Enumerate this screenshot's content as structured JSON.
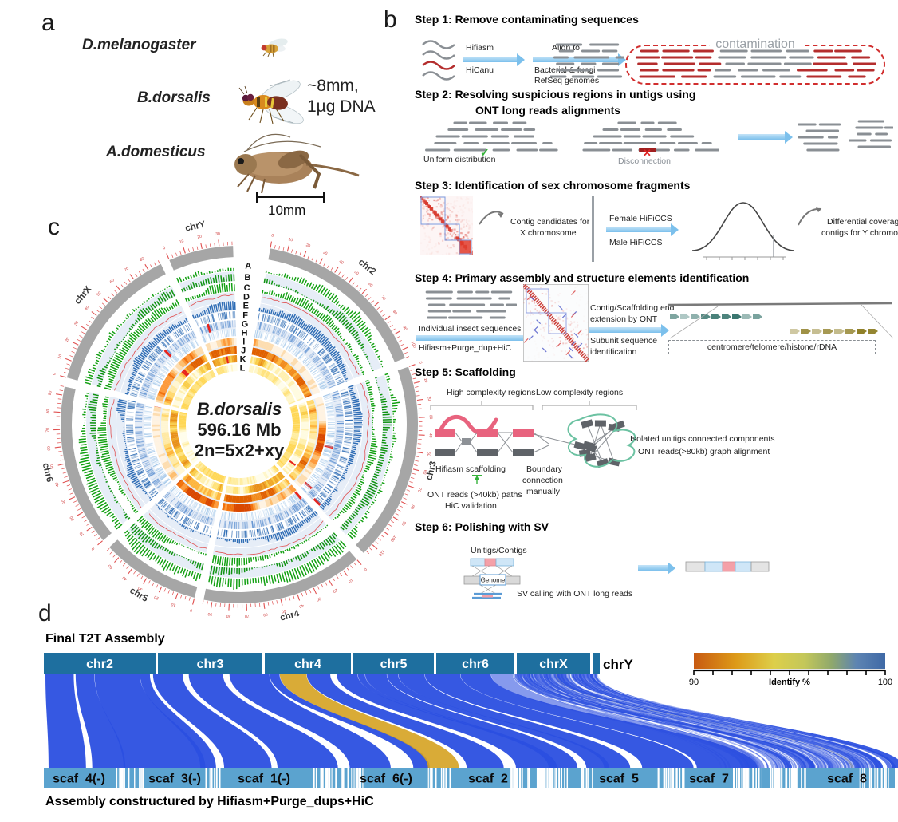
{
  "figure": {
    "panel_a_label": "a",
    "panel_b_label": "b",
    "panel_c_label": "c",
    "panel_d_label": "d"
  },
  "panel_a": {
    "species_1": "D.melanogaster",
    "species_2": "B.dorsalis",
    "species_3": "A.domesticus",
    "size_note_1": "~8mm,",
    "size_note_2": "1µg DNA",
    "scalebar_label": "10mm"
  },
  "panel_b": {
    "step1": {
      "title": "Step 1: Remove contaminating sequences",
      "arrow1_top": "Hifiasm",
      "arrow1_bottom": "HiCanu",
      "arrow2_top": "Align to",
      "arrow2_bottom_1": "Bacterial & fungi",
      "arrow2_bottom_2": "RefSeq genomes",
      "contamination_label": "contamination"
    },
    "step2": {
      "title_1": "Step 2: Resolving suspicious regions in untigs using",
      "title_2": "ONT long reads alignments",
      "uniform_label": "Uniform distribution",
      "disconnection_label": "Disconnection"
    },
    "step3": {
      "title": "Step 3: Identification of sex chromosome fragments",
      "x_label_1": "Contig candidates for",
      "x_label_2": "X chromosome",
      "arrow_top": "Female HiFiCCS",
      "arrow_bottom": "Male HiFiCCS",
      "y_label_1": "Differential coveraged",
      "y_label_2": "contigs for Y chromosome"
    },
    "step4": {
      "title": "Step 4: Primary assembly and structure elements identification",
      "seq_label": "Individual insect sequences",
      "tool_label": "Hifiasm+Purge_dup+HiC",
      "ext_label_1": "Contig/Scaffolding end",
      "ext_label_2": "extension by ONT",
      "sub_label_1": "Subunit sequence",
      "sub_label_2": "identification",
      "elements_label": "centromere/telomere/histone/rDNA"
    },
    "step5": {
      "title": "Step 5: Scaffolding",
      "high_label": "High complexity regions",
      "low_label": "Low complexity regions",
      "hifiasm_label": "Hifiasm scaffolding",
      "ont_label_1": "ONT reads (>40kb) paths",
      "ont_label_2": "HiC validation",
      "boundary_label_1": "Boundary",
      "boundary_label_2": "connection",
      "boundary_label_3": "manually",
      "isolated_label_1": "Isolated unitigs connected components",
      "isolated_label_2": "ONT reads(>80kb) graph alignment"
    },
    "step6": {
      "title": "Step 6: Polishing with SV",
      "unitigs_label": "Unitigs/Contigs",
      "genome_label": "Genome",
      "sv_label": "SV calling with ONT long reads"
    }
  },
  "panel_c": {
    "center_line_1": "B.dorsalis",
    "center_line_2": "596.16 Mb",
    "center_line_3": "2n=5x2+xy",
    "track_letters": [
      "A",
      "B",
      "C",
      "D",
      "E",
      "F",
      "G",
      "H",
      "I",
      "J",
      "K",
      "L"
    ],
    "chromosomes": [
      {
        "name": "chr2",
        "size_mb": 105
      },
      {
        "name": "chr3",
        "size_mb": 117
      },
      {
        "name": "chr4",
        "size_mb": 95
      },
      {
        "name": "chr5",
        "size_mb": 58
      },
      {
        "name": "chr6",
        "size_mb": 95
      },
      {
        "name": "chrX",
        "size_mb": 88
      },
      {
        "name": "chrY",
        "size_mb": 38
      }
    ]
  },
  "panel_d": {
    "title": "Final T2T Assembly",
    "footer": "Assembly constructured by Hifiasm+Purge_dups+HiC",
    "chromosomes": [
      "chr2",
      "chr3",
      "chr4",
      "chr5",
      "chr6",
      "chrX"
    ],
    "chry_label": "chrY",
    "scaffolds": [
      "scaf_4(-)",
      "scaf_3(-)",
      "scaf_1(-)",
      "scaf_6(-)",
      "scaf_2",
      "scaf_5",
      "scaf_7",
      "scaf_8"
    ],
    "legend": {
      "min_label": "90",
      "max_label": "100",
      "title": "Identify %"
    }
  },
  "colors": {
    "chr_bar": "#1e6f9f",
    "scaf_bar": "#5ba3cf",
    "ribbon_blue": "#2b4fe0",
    "ribbon_gray": "#939aa6",
    "ribbon_gold": "#d5a221",
    "green_track": "#13a013",
    "blue_track": "#2f6db5",
    "red_accent": "#e8241c",
    "ideogram": "#a6a6a6",
    "tick_red": "#e05050"
  }
}
